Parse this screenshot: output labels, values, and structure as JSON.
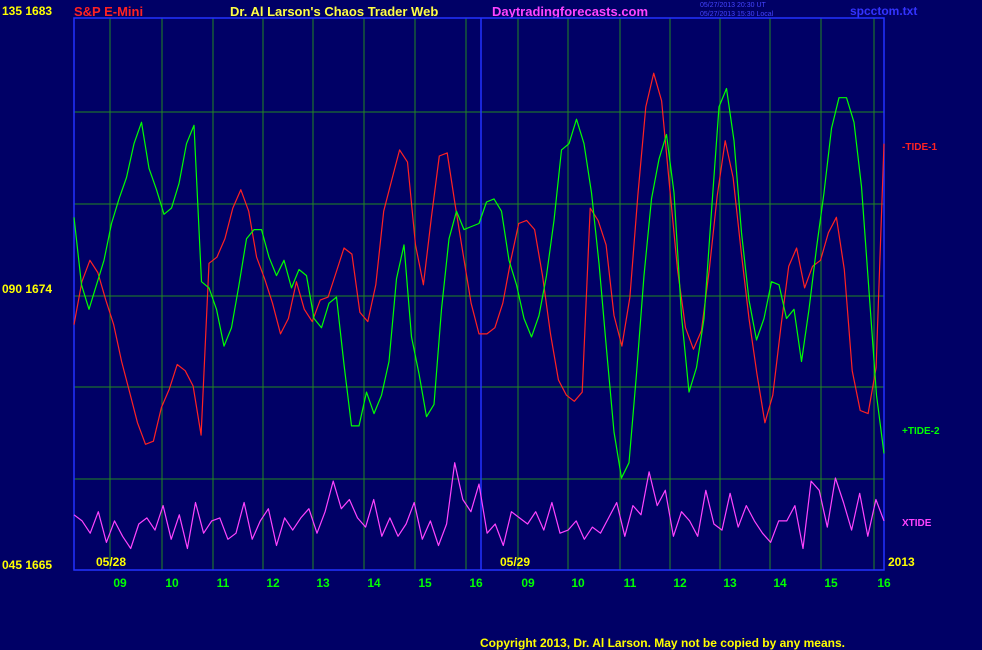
{
  "header": {
    "instrument": "S&P E-Mini",
    "center_title": "Dr. Al Larson's Chaos Trader Web",
    "site": "Daytradingforecasts.com",
    "file": "spcctom.txt",
    "timestamp_ut": "05/27/2013 20:30 UT",
    "timestamp_local": "05/27/2013 15:30 Local"
  },
  "footer": {
    "copyright": "Copyright 2013, Dr. Al Larson. May not be copied by any means."
  },
  "chart_data": {
    "type": "line",
    "y_left_labels": [
      {
        "label": "135 1683",
        "value": 1683
      },
      {
        "label": "090 1674",
        "value": 1674
      },
      {
        "label": "045 1665",
        "value": 1665
      }
    ],
    "ylim": [
      1665,
      1683
    ],
    "x_hour_ticks": [
      "09",
      "10",
      "11",
      "12",
      "13",
      "14",
      "15",
      "16",
      "09",
      "10",
      "11",
      "12",
      "13",
      "14",
      "15",
      "16"
    ],
    "day_labels": [
      "05/28",
      "05/29"
    ],
    "year_label": "2013",
    "grid": true,
    "colors": {
      "tide1": "#ff2222",
      "tide2": "#00ff00",
      "xtide": "#ff44ff",
      "grid": "#228822",
      "day_line": "#2233ff",
      "frame": "#2233ff"
    },
    "series": [
      {
        "name": "-TIDE-1",
        "values": [
          1673.0,
          1674.4,
          1675.1,
          1674.7,
          1673.8,
          1673.0,
          1671.8,
          1670.8,
          1669.8,
          1669.1,
          1669.2,
          1670.3,
          1670.9,
          1671.7,
          1671.5,
          1671.0,
          1669.4,
          1675.0,
          1675.2,
          1675.8,
          1676.8,
          1677.4,
          1676.7,
          1675.2,
          1674.5,
          1673.7,
          1672.7,
          1673.2,
          1674.4,
          1673.5,
          1673.1,
          1673.8,
          1673.9,
          1674.7,
          1675.5,
          1675.3,
          1673.4,
          1673.1,
          1674.3,
          1676.7,
          1677.7,
          1678.7,
          1678.3,
          1675.6,
          1674.3,
          1676.5,
          1678.5,
          1678.6,
          1676.9,
          1675.3,
          1673.7,
          1672.7,
          1672.7,
          1672.9,
          1673.7,
          1675.1,
          1676.3,
          1676.4,
          1676.1,
          1674.6,
          1672.7,
          1671.2,
          1670.7,
          1670.5,
          1670.8,
          1676.8,
          1676.4,
          1675.6,
          1673.3,
          1672.3,
          1673.9,
          1677.2,
          1680.1,
          1681.2,
          1680.3,
          1677.5,
          1674.8,
          1672.9,
          1672.2,
          1672.8,
          1674.8,
          1677.2,
          1679.0,
          1677.8,
          1675.4,
          1673.2,
          1671.4,
          1669.8,
          1670.7,
          1672.9,
          1674.9,
          1675.5,
          1674.2,
          1674.9,
          1675.1,
          1676.0,
          1676.5,
          1674.8,
          1671.5,
          1670.2,
          1670.1,
          1671.6,
          1678.9
        ]
      },
      {
        "name": "+TIDE-2",
        "values": [
          1676.5,
          1674.3,
          1673.5,
          1674.3,
          1675.1,
          1676.3,
          1677.1,
          1677.8,
          1678.9,
          1679.6,
          1678.1,
          1677.4,
          1676.6,
          1676.8,
          1677.6,
          1678.9,
          1679.5,
          1674.4,
          1674.2,
          1673.5,
          1672.3,
          1672.9,
          1674.3,
          1675.8,
          1676.1,
          1676.1,
          1675.2,
          1674.6,
          1675.1,
          1674.2,
          1674.8,
          1674.6,
          1673.2,
          1672.9,
          1673.7,
          1673.9,
          1671.7,
          1669.7,
          1669.7,
          1670.8,
          1670.1,
          1670.7,
          1671.8,
          1674.5,
          1675.6,
          1672.6,
          1671.4,
          1670.0,
          1670.4,
          1673.5,
          1675.8,
          1676.7,
          1676.1,
          1676.2,
          1676.3,
          1677.0,
          1677.1,
          1676.7,
          1675.1,
          1674.3,
          1673.2,
          1672.6,
          1673.3,
          1674.6,
          1676.4,
          1678.7,
          1678.9,
          1679.7,
          1678.9,
          1677.3,
          1675.0,
          1672.2,
          1669.5,
          1668.0,
          1668.5,
          1671.4,
          1674.6,
          1677.1,
          1678.4,
          1679.2,
          1677.3,
          1673.3,
          1670.8,
          1671.6,
          1673.2,
          1676.7,
          1680.1,
          1680.7,
          1679.0,
          1676.0,
          1673.8,
          1672.5,
          1673.2,
          1674.4,
          1674.3,
          1673.2,
          1673.5,
          1671.8,
          1673.5,
          1675.5,
          1677.3,
          1679.4,
          1680.4,
          1680.4,
          1679.6,
          1677.5,
          1674.1,
          1670.7,
          1668.8
        ]
      },
      {
        "name": "XTIDE",
        "values": [
          1666.8,
          1666.6,
          1666.2,
          1666.9,
          1665.9,
          1666.6,
          1666.1,
          1665.7,
          1666.5,
          1666.7,
          1666.3,
          1667.1,
          1666.0,
          1666.8,
          1665.7,
          1667.2,
          1666.2,
          1666.6,
          1666.7,
          1666.0,
          1666.2,
          1667.2,
          1666.0,
          1666.6,
          1667.0,
          1665.8,
          1666.7,
          1666.3,
          1666.7,
          1667.0,
          1666.2,
          1666.9,
          1667.9,
          1667.0,
          1667.3,
          1666.7,
          1666.4,
          1667.3,
          1666.1,
          1666.7,
          1666.1,
          1666.5,
          1667.2,
          1666.0,
          1666.6,
          1665.8,
          1666.5,
          1668.5,
          1667.3,
          1666.9,
          1667.8,
          1666.2,
          1666.5,
          1665.8,
          1666.9,
          1666.7,
          1666.5,
          1666.9,
          1666.3,
          1667.2,
          1666.2,
          1666.3,
          1666.6,
          1666.0,
          1666.4,
          1666.2,
          1666.7,
          1667.2,
          1666.1,
          1667.1,
          1666.8,
          1668.2,
          1667.1,
          1667.6,
          1666.1,
          1666.9,
          1666.6,
          1666.1,
          1667.6,
          1666.5,
          1666.3,
          1667.5,
          1666.4,
          1667.1,
          1666.6,
          1666.2,
          1665.9,
          1666.6,
          1666.6,
          1667.1,
          1665.7,
          1667.9,
          1667.6,
          1666.4,
          1668.0,
          1667.2,
          1666.3,
          1667.5,
          1666.1,
          1667.3,
          1666.6
        ]
      }
    ]
  }
}
